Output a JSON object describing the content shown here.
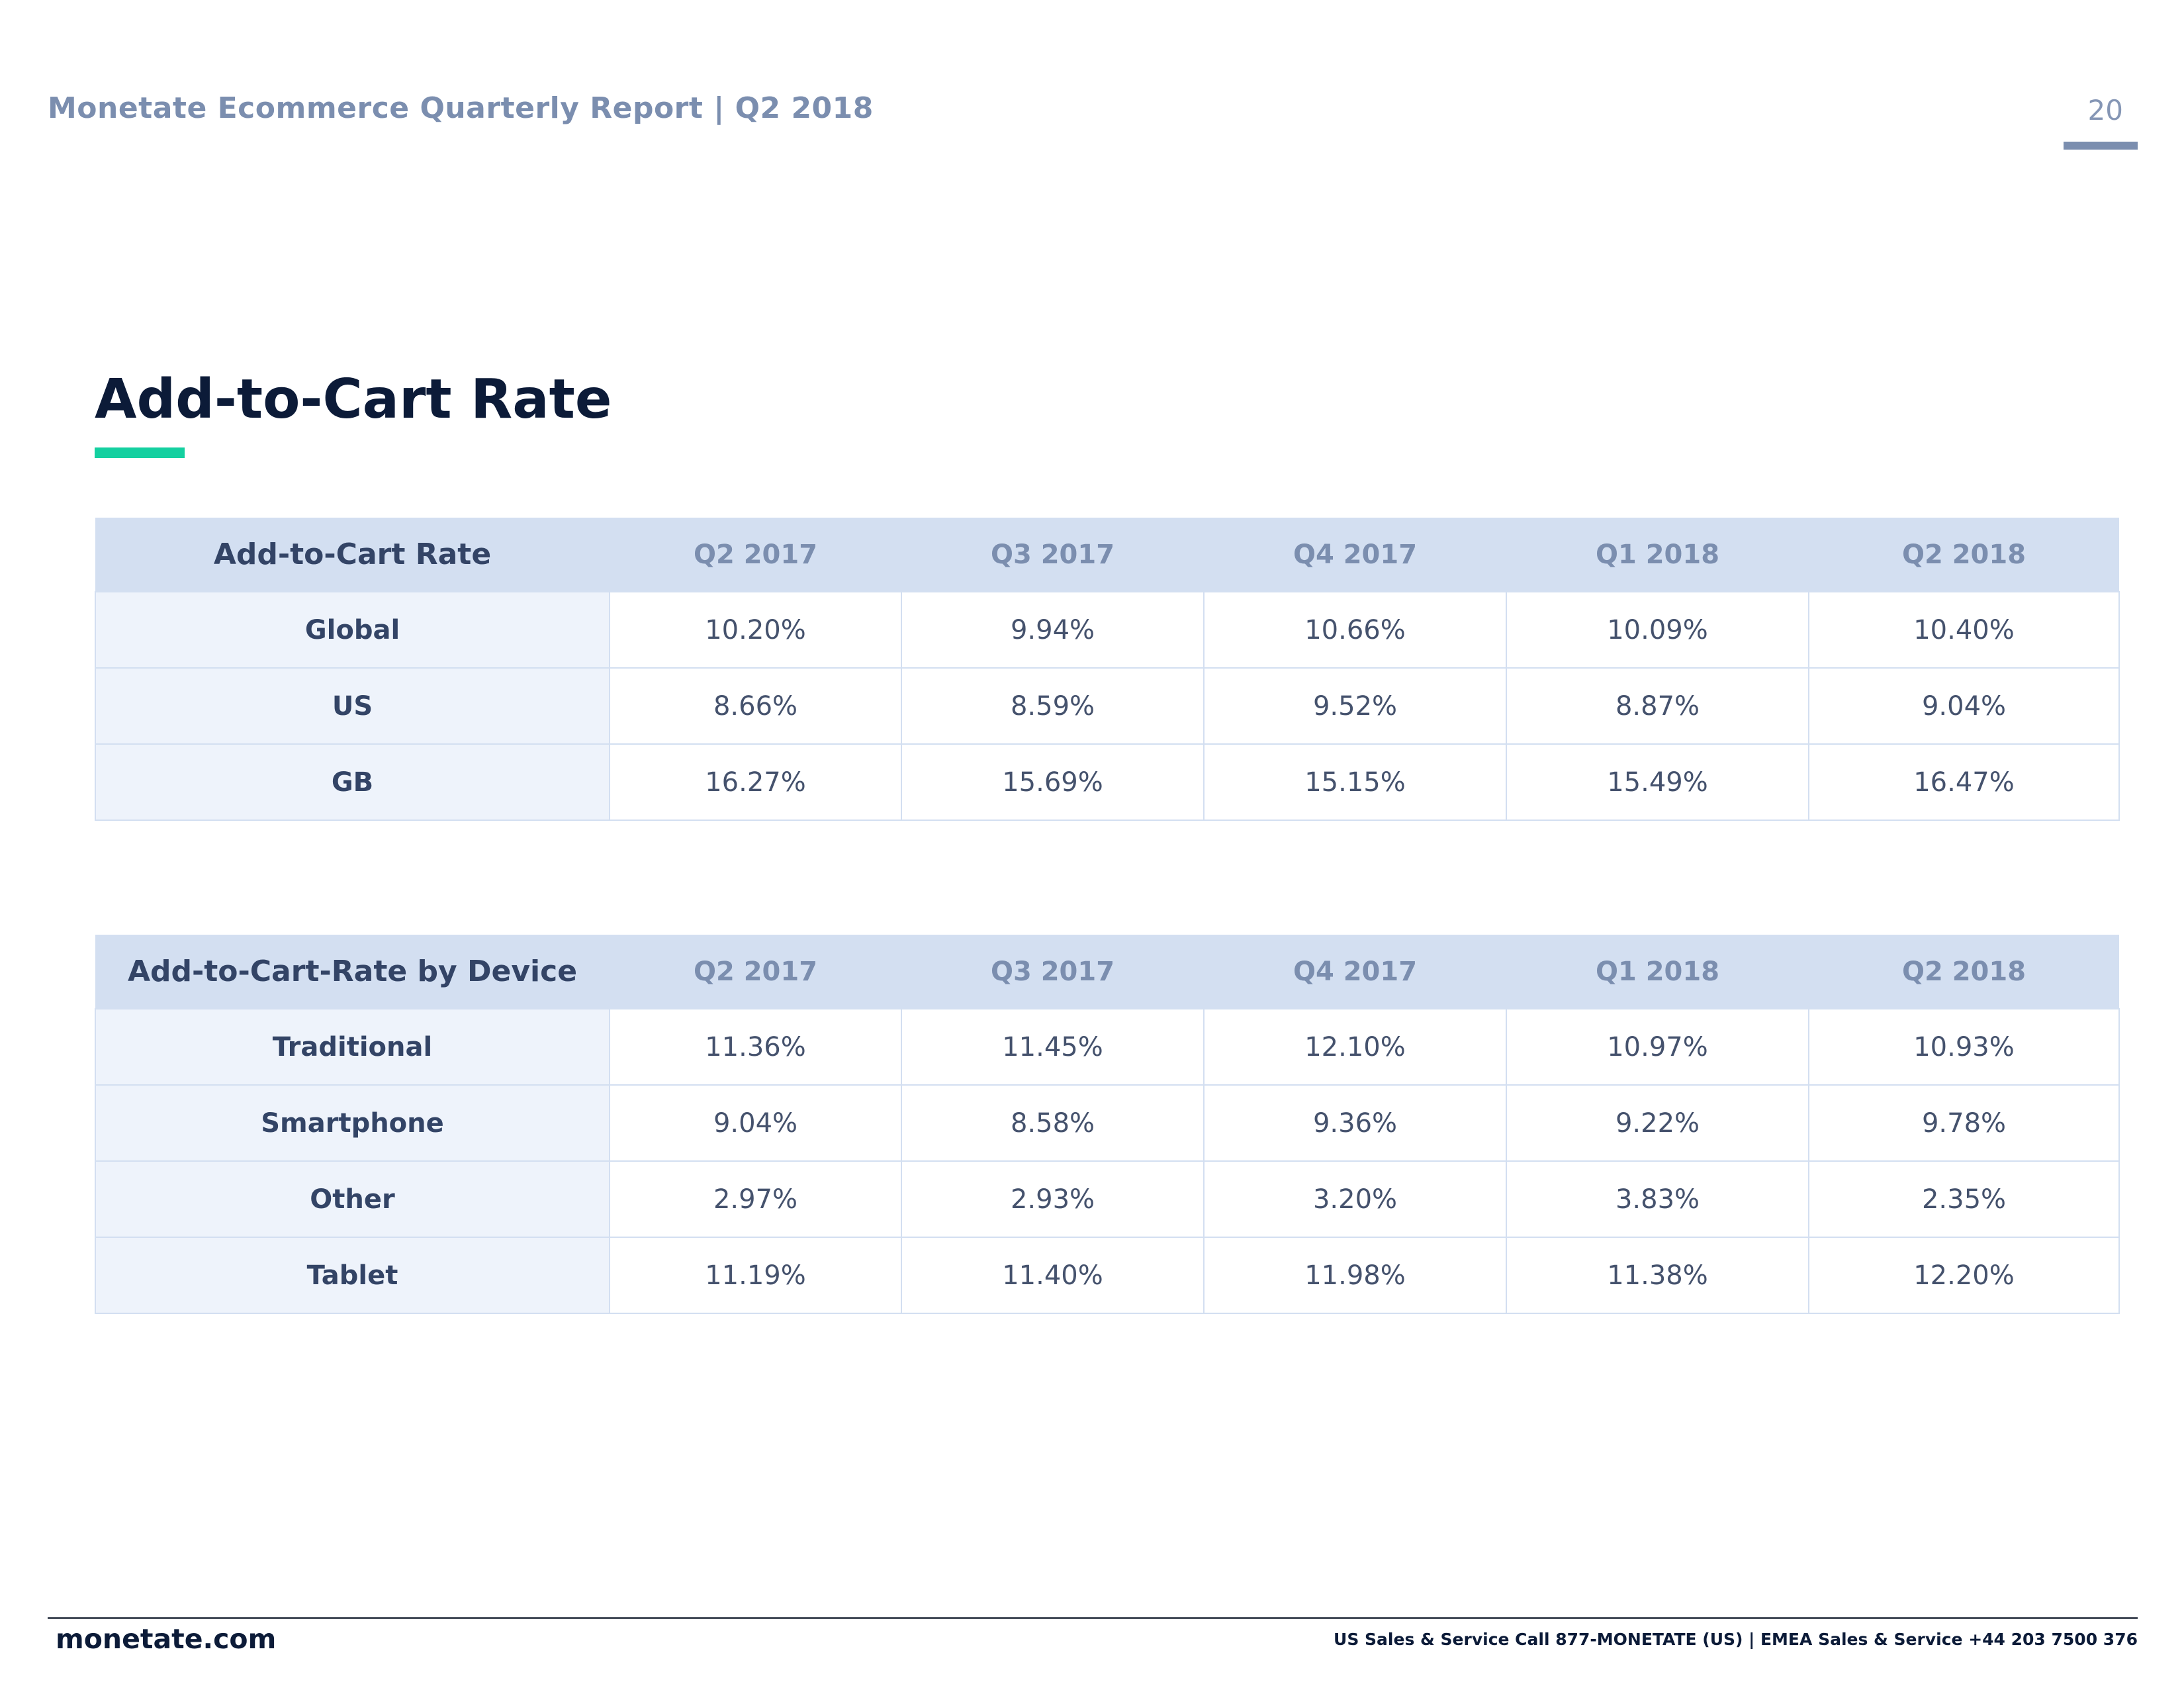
{
  "header": {
    "title": "Monetate Ecommerce Quarterly Report | Q2 2018",
    "page_number": "20"
  },
  "section": {
    "title": "Add-to-Cart Rate"
  },
  "table_overall": {
    "row_header": "Add-to-Cart Rate",
    "columns": [
      "Q2 2017",
      "Q3 2017",
      "Q4 2017",
      "Q1 2018",
      "Q2 2018"
    ],
    "rows": [
      {
        "label": "Global",
        "values": [
          "10.20%",
          "9.94%",
          "10.66%",
          "10.09%",
          "10.40%"
        ]
      },
      {
        "label": "US",
        "values": [
          "8.66%",
          "8.59%",
          "9.52%",
          "8.87%",
          "9.04%"
        ]
      },
      {
        "label": "GB",
        "values": [
          "16.27%",
          "15.69%",
          "15.15%",
          "15.49%",
          "16.47%"
        ]
      }
    ]
  },
  "table_device": {
    "row_header": "Add-to-Cart-Rate by Device",
    "columns": [
      "Q2 2017",
      "Q3 2017",
      "Q4 2017",
      "Q1 2018",
      "Q2 2018"
    ],
    "rows": [
      {
        "label": "Traditional",
        "values": [
          "11.36%",
          "11.45%",
          "12.10%",
          "10.97%",
          "10.93%"
        ]
      },
      {
        "label": "Smartphone",
        "values": [
          "9.04%",
          "8.58%",
          "9.36%",
          "9.22%",
          "9.78%"
        ]
      },
      {
        "label": "Other",
        "values": [
          "2.97%",
          "2.93%",
          "3.20%",
          "3.83%",
          "2.35%"
        ]
      },
      {
        "label": "Tablet",
        "values": [
          "11.19%",
          "11.40%",
          "11.98%",
          "11.38%",
          "12.20%"
        ]
      }
    ]
  },
  "footer": {
    "domain": "monetate.com",
    "contact": "US Sales & Service Call 877-MONETATE (US) | EMEA Sales & Service +44 203 7500 376"
  }
}
